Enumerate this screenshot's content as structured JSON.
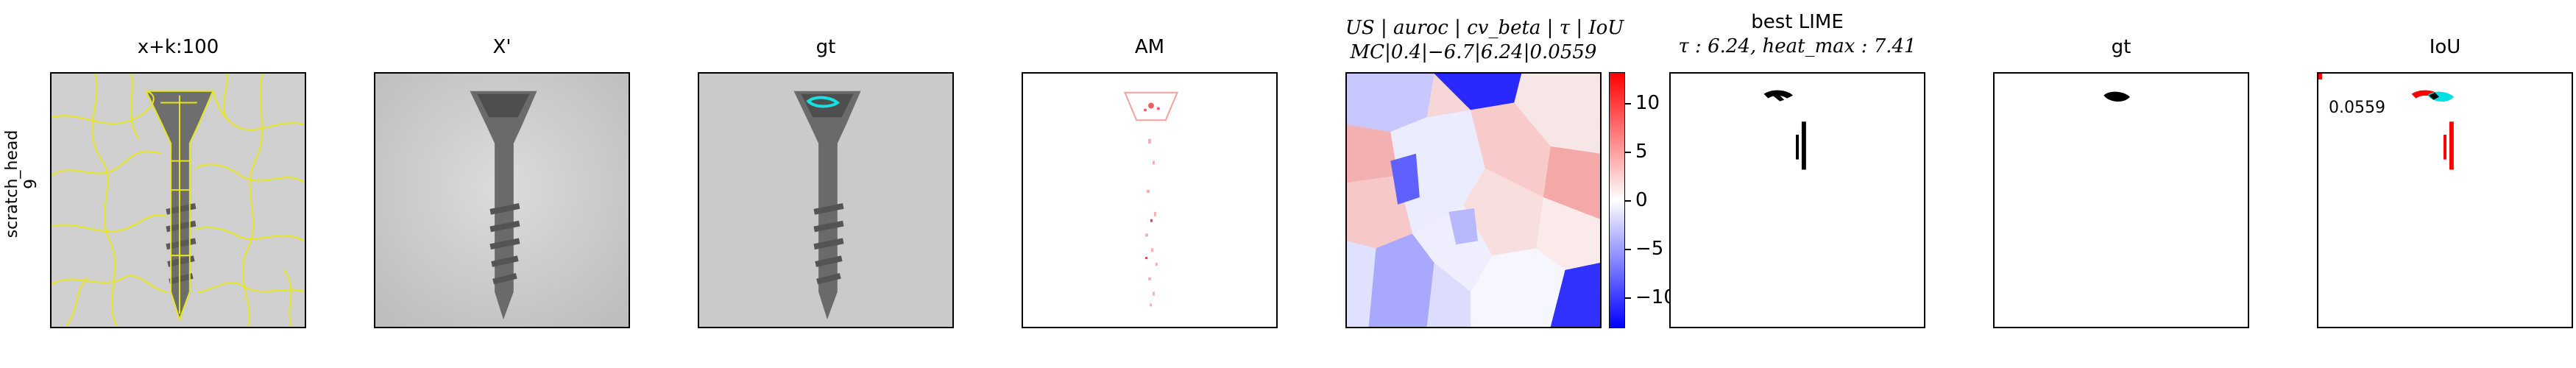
{
  "row_label": {
    "line1": "scratch_head",
    "line2": "9"
  },
  "panels": {
    "p1": {
      "title": "x+k:100"
    },
    "p2": {
      "title": "X'"
    },
    "p3": {
      "title": "gt"
    },
    "p4": {
      "title": "AM"
    },
    "p5": {
      "title_line1": "US | auroc | cv_beta | τ | IoU",
      "title_line2": "MC|0.4|−6.7|6.24|0.0559"
    },
    "p6": {
      "title_line1": "best LIME",
      "title_line2": "τ : 6.24, heat_max : 7.41"
    },
    "p7": {
      "title": "gt"
    },
    "p8": {
      "title": "IoU",
      "value": "0.0559"
    }
  },
  "colorbar": {
    "ticks": [
      {
        "value": 10,
        "label": "10"
      },
      {
        "value": 5,
        "label": "5"
      },
      {
        "value": 0,
        "label": "0"
      },
      {
        "value": -5,
        "label": "−5"
      },
      {
        "value": -10,
        "label": "−10"
      }
    ],
    "range": [
      -13.2,
      13.2
    ],
    "colors": {
      "top": "#ff0000",
      "mid": "#ffffff",
      "bottom": "#0000ff"
    }
  }
}
